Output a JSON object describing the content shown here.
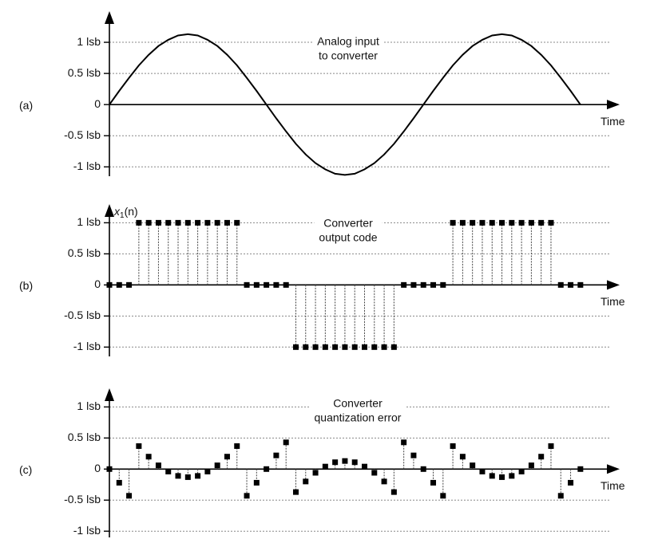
{
  "chart_data": [
    {
      "type": "line",
      "panel_label": "(a)",
      "xlabel": "Time",
      "annotation": [
        "Analog input",
        "to converter"
      ],
      "x": [
        0,
        1,
        2,
        3,
        4,
        5,
        6,
        7,
        8,
        9,
        10,
        11,
        12,
        13,
        14,
        15,
        16,
        17,
        18,
        19,
        20,
        21,
        22,
        23,
        24,
        25,
        26,
        27,
        28,
        29,
        30,
        31,
        32,
        33,
        34,
        35,
        36,
        37,
        38,
        39,
        40,
        41,
        42,
        43,
        44,
        45,
        46,
        47,
        48
      ],
      "values": [
        0,
        0.22,
        0.43,
        0.63,
        0.8,
        0.94,
        1.04,
        1.11,
        1.13,
        1.11,
        1.04,
        0.94,
        0.8,
        0.63,
        0.43,
        0.22,
        0,
        -0.22,
        -0.43,
        -0.63,
        -0.8,
        -0.94,
        -1.04,
        -1.11,
        -1.13,
        -1.11,
        -1.04,
        -0.94,
        -0.8,
        -0.63,
        -0.43,
        -0.22,
        0,
        0.22,
        0.43,
        0.63,
        0.8,
        0.94,
        1.04,
        1.11,
        1.13,
        1.11,
        1.04,
        0.94,
        0.8,
        0.63,
        0.43,
        0.22,
        0
      ],
      "color": "#000000",
      "xlim": [
        0,
        52
      ],
      "ylim": [
        -1.15,
        1.5
      ],
      "yticks": [
        {
          "value": 1,
          "label": "1 lsb"
        },
        {
          "value": 0.5,
          "label": "0.5 lsb"
        },
        0,
        {
          "value": -0.5,
          "label": "-0.5 lsb"
        },
        {
          "value": -1,
          "label": "-1 lsb"
        }
      ],
      "grid": true
    },
    {
      "type": "stem",
      "panel_label": "(b)",
      "xlabel": "Time",
      "ylabel": [
        "x",
        "1",
        "(n)"
      ],
      "annotation": [
        "Converter",
        "output code"
      ],
      "x": [
        0,
        1,
        2,
        3,
        4,
        5,
        6,
        7,
        8,
        9,
        10,
        11,
        12,
        13,
        14,
        15,
        16,
        17,
        18,
        19,
        20,
        21,
        22,
        23,
        24,
        25,
        26,
        27,
        28,
        29,
        30,
        31,
        32,
        33,
        34,
        35,
        36,
        37,
        38,
        39,
        40,
        41,
        42,
        43,
        44,
        45,
        46,
        47,
        48
      ],
      "values": [
        0,
        0,
        0,
        1,
        1,
        1,
        1,
        1,
        1,
        1,
        1,
        1,
        1,
        1,
        0,
        0,
        0,
        0,
        0,
        -1,
        -1,
        -1,
        -1,
        -1,
        -1,
        -1,
        -1,
        -1,
        -1,
        -1,
        0,
        0,
        0,
        0,
        0,
        1,
        1,
        1,
        1,
        1,
        1,
        1,
        1,
        1,
        1,
        1,
        0,
        0,
        0
      ],
      "color": "#000000",
      "xlim": [
        0,
        52
      ],
      "ylim": [
        -1.15,
        1.3
      ],
      "yticks": [
        {
          "value": 1,
          "label": "1 lsb"
        },
        {
          "value": 0.5,
          "label": "0.5 lsb"
        },
        0,
        {
          "value": -0.5,
          "label": "-0.5 lsb"
        },
        {
          "value": -1,
          "label": "-1 lsb"
        }
      ],
      "grid": true
    },
    {
      "type": "stem",
      "panel_label": "(c)",
      "xlabel": "Time",
      "annotation": [
        "Converter",
        "quantization error"
      ],
      "x": [
        0,
        1,
        2,
        3,
        4,
        5,
        6,
        7,
        8,
        9,
        10,
        11,
        12,
        13,
        14,
        15,
        16,
        17,
        18,
        19,
        20,
        21,
        22,
        23,
        24,
        25,
        26,
        27,
        28,
        29,
        30,
        31,
        32,
        33,
        34,
        35,
        36,
        37,
        38,
        39,
        40,
        41,
        42,
        43,
        44,
        45,
        46,
        47,
        48
      ],
      "values": [
        0,
        -0.22,
        -0.43,
        0.37,
        0.2,
        0.06,
        -0.04,
        -0.11,
        -0.13,
        -0.11,
        -0.04,
        0.06,
        0.2,
        0.37,
        -0.43,
        -0.22,
        0,
        0.22,
        0.43,
        -0.37,
        -0.2,
        -0.06,
        0.04,
        0.11,
        0.13,
        0.11,
        0.04,
        -0.06,
        -0.2,
        -0.37,
        0.43,
        0.22,
        0,
        -0.22,
        -0.43,
        0.37,
        0.2,
        0.06,
        -0.04,
        -0.11,
        -0.13,
        -0.11,
        -0.04,
        0.06,
        0.2,
        0.37,
        -0.43,
        -0.22,
        0
      ],
      "color": "#000000",
      "xlim": [
        0,
        52
      ],
      "ylim": [
        -1.1,
        1.3
      ],
      "yticks": [
        {
          "value": 1,
          "label": "1 lsb"
        },
        {
          "value": 0.5,
          "label": "0.5 lsb"
        },
        0,
        {
          "value": -0.5,
          "label": "-0.5 lsb"
        },
        {
          "value": -1,
          "label": "-1 lsb"
        }
      ],
      "grid": true
    }
  ]
}
